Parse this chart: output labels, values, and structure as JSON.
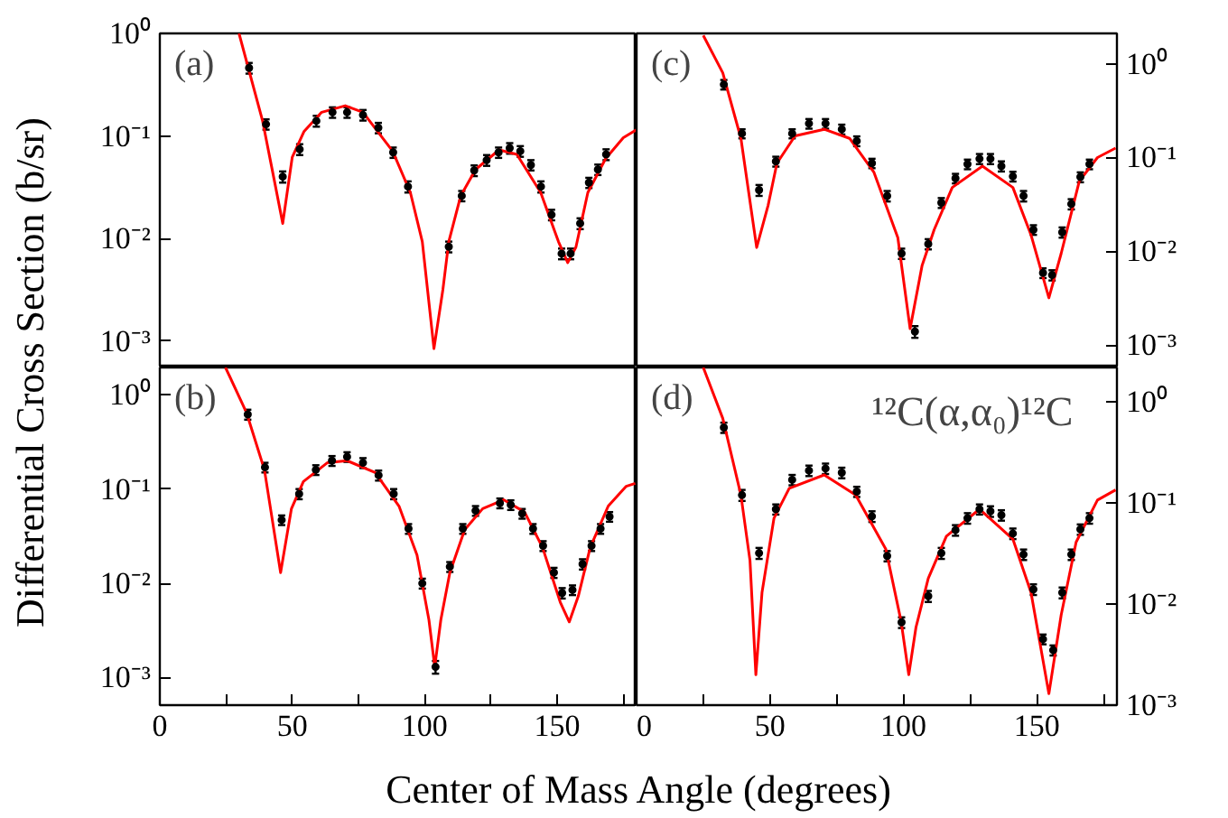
{
  "chart_data": [
    {
      "type": "scatter",
      "annotations": [
        "(a)"
      ],
      "ylabel": "Differential Cross Section (b/sr)",
      "log": true,
      "xlim": [
        0,
        180
      ],
      "ylim": [
        0.00055,
        1
      ],
      "yticks": [
        {
          "value": 0.001,
          "label": "10⁻³"
        },
        {
          "value": 0.01,
          "label": "10⁻²"
        },
        {
          "value": 0.1,
          "label": "10⁻¹"
        },
        {
          "value": 1,
          "label": "10⁰"
        }
      ],
      "tick_labels": "y",
      "series": [
        {
          "type": "scatter",
          "marker": "circle",
          "color": "#000000",
          "x": [
            33.7,
            40.1,
            46.4,
            52.8,
            59.1,
            65.2,
            70.7,
            76.7,
            82.5,
            88.1,
            93.7,
            109.1,
            114.0,
            118.7,
            123.4,
            127.9,
            132.1,
            136.1,
            140.1,
            143.9,
            147.9,
            151.7,
            155.1,
            158.7,
            162.0,
            165.4,
            168.5
          ],
          "values": [
            0.46,
            0.13,
            0.04,
            0.074,
            0.14,
            0.17,
            0.17,
            0.16,
            0.12,
            0.069,
            0.032,
            0.0083,
            0.026,
            0.046,
            0.058,
            0.069,
            0.076,
            0.071,
            0.052,
            0.032,
            0.017,
            0.0071,
            0.0071,
            0.014,
            0.035,
            0.047,
            0.066
          ],
          "errors": [
            0.055,
            0.015,
            0.005,
            0.009,
            0.017,
            0.02,
            0.02,
            0.019,
            0.014,
            0.008,
            0.004,
            0.001,
            0.003,
            0.0055,
            0.007,
            0.008,
            0.009,
            0.0085,
            0.006,
            0.004,
            0.002,
            0.00085,
            0.00085,
            0.0017,
            0.004,
            0.0055,
            0.008
          ]
        },
        {
          "type": "line",
          "color": "#ff0000",
          "x": [
            29.9,
            38.8,
            43.3,
            46.4,
            50.0,
            54.4,
            61.1,
            70.0,
            76.7,
            87.9,
            94.6,
            99.1,
            103.5,
            106.9,
            109.1,
            113.6,
            119.2,
            128.1,
            134.8,
            143.8,
            150.5,
            154.0,
            157.1,
            161.6,
            168.3,
            175.0,
            180.0
          ],
          "values": [
            1,
            0.14,
            0.036,
            0.014,
            0.062,
            0.11,
            0.17,
            0.197,
            0.17,
            0.071,
            0.028,
            0.0093,
            0.00084,
            0.0032,
            0.0093,
            0.026,
            0.047,
            0.073,
            0.066,
            0.028,
            0.0093,
            0.0058,
            0.0082,
            0.028,
            0.06,
            0.096,
            0.115
          ]
        }
      ]
    },
    {
      "type": "scatter",
      "annotations": [
        "(c)"
      ],
      "log": true,
      "xlim": [
        0,
        180
      ],
      "ylim": [
        0.00058,
        2.1
      ],
      "yticks": [
        {
          "value": 0.001,
          "label": "10⁻³"
        },
        {
          "value": 0.01,
          "label": "10⁻²"
        },
        {
          "value": 0.1,
          "label": "10⁻¹"
        },
        {
          "value": 1,
          "label": "10⁰"
        }
      ],
      "tick_labels": "y",
      "series": [
        {
          "type": "scatter",
          "marker": "circle",
          "color": "#000000",
          "x": [
            32.7,
            39.5,
            45.9,
            52.2,
            58.3,
            64.6,
            70.8,
            76.9,
            82.5,
            88.2,
            93.9,
            99.3,
            104.3,
            109.3,
            114.2,
            119.5,
            124.0,
            128.5,
            132.6,
            136.7,
            141.0,
            145.0,
            148.7,
            152.3,
            155.7,
            159.5,
            162.9,
            166.3,
            169.7
          ],
          "values": [
            0.6,
            0.18,
            0.045,
            0.091,
            0.18,
            0.23,
            0.23,
            0.2,
            0.15,
            0.087,
            0.039,
            0.0095,
            0.0014,
            0.012,
            0.033,
            0.06,
            0.085,
            0.097,
            0.097,
            0.081,
            0.063,
            0.039,
            0.017,
            0.0059,
            0.0056,
            0.016,
            0.032,
            0.062,
            0.085
          ],
          "errors": [
            0.07,
            0.02,
            0.006,
            0.011,
            0.02,
            0.027,
            0.027,
            0.024,
            0.018,
            0.01,
            0.005,
            0.0012,
            0.0002,
            0.0015,
            0.004,
            0.007,
            0.01,
            0.012,
            0.012,
            0.01,
            0.0075,
            0.005,
            0.002,
            0.0007,
            0.0007,
            0.002,
            0.004,
            0.0075,
            0.01
          ]
        },
        {
          "type": "line",
          "color": "#ff0000",
          "x": [
            25.0,
            32.3,
            39.1,
            45.0,
            49.3,
            52.6,
            59.4,
            70.3,
            79.8,
            88.9,
            97.9,
            102.5,
            107.0,
            111.5,
            118.3,
            129.6,
            141.0,
            147.8,
            154.5,
            159.1,
            165.9,
            172.7,
            179.5
          ],
          "values": [
            2.0,
            0.8,
            0.16,
            0.011,
            0.031,
            0.087,
            0.17,
            0.2,
            0.16,
            0.07,
            0.014,
            0.0015,
            0.0071,
            0.017,
            0.048,
            0.081,
            0.048,
            0.015,
            0.0032,
            0.0095,
            0.056,
            0.1,
            0.126
          ]
        }
      ]
    },
    {
      "type": "scatter",
      "annotations": [
        "(b)"
      ],
      "xlabel": "Center of Mass Angle (degrees)",
      "log": true,
      "xlim": [
        0,
        180
      ],
      "ylim": [
        0.00051,
        1.95
      ],
      "xticks": [
        0,
        {
          "value": 25,
          "label": null
        },
        50,
        {
          "value": 75,
          "label": null
        },
        100,
        {
          "value": 125,
          "label": null
        },
        150,
        {
          "value": 175,
          "label": null
        }
      ],
      "yticks": [
        {
          "value": 0.001,
          "label": "10⁻³"
        },
        {
          "value": 0.01,
          "label": "10⁻²"
        },
        {
          "value": 0.1,
          "label": "10⁻¹"
        },
        {
          "value": 1,
          "label": "10⁰"
        }
      ],
      "series": [
        {
          "type": "scatter",
          "marker": "circle",
          "color": "#000000",
          "x": [
            33.2,
            39.7,
            46.0,
            52.6,
            58.9,
            65.0,
            70.7,
            76.7,
            82.6,
            88.3,
            93.9,
            99.1,
            104.1,
            109.5,
            114.4,
            119.2,
            128.4,
            132.5,
            136.8,
            140.9,
            144.7,
            148.8,
            151.9,
            155.8,
            159.6,
            163.0,
            166.4,
            169.8
          ],
          "values": [
            0.62,
            0.17,
            0.047,
            0.089,
            0.16,
            0.2,
            0.22,
            0.19,
            0.14,
            0.089,
            0.038,
            0.01,
            0.0013,
            0.015,
            0.038,
            0.059,
            0.071,
            0.068,
            0.055,
            0.038,
            0.025,
            0.013,
            0.0079,
            0.0085,
            0.016,
            0.025,
            0.038,
            0.051
          ],
          "errors": [
            0.075,
            0.02,
            0.0055,
            0.011,
            0.019,
            0.024,
            0.026,
            0.023,
            0.017,
            0.011,
            0.0045,
            0.0012,
            0.0002,
            0.0018,
            0.0045,
            0.007,
            0.0085,
            0.008,
            0.0065,
            0.0045,
            0.003,
            0.0016,
            0.001,
            0.001,
            0.002,
            0.003,
            0.0045,
            0.006
          ]
        },
        {
          "type": "line",
          "color": "#ff0000",
          "x": [
            24.8,
            32.7,
            39.5,
            45.6,
            49.7,
            54.2,
            63.2,
            70.7,
            81.3,
            90.3,
            97.1,
            101.6,
            103.8,
            106.1,
            109.5,
            115.1,
            121.9,
            129.8,
            137.7,
            144.5,
            151.2,
            154.6,
            158.0,
            162.5,
            169.3,
            176.1,
            179.5
          ],
          "values": [
            1.95,
            0.65,
            0.16,
            0.013,
            0.062,
            0.12,
            0.19,
            0.2,
            0.15,
            0.066,
            0.02,
            0.0041,
            0.0013,
            0.0041,
            0.013,
            0.037,
            0.062,
            0.077,
            0.057,
            0.024,
            0.0063,
            0.0039,
            0.0073,
            0.024,
            0.066,
            0.107,
            0.115
          ]
        }
      ]
    },
    {
      "type": "scatter",
      "annotations": [
        "(d)",
        "¹²C(α,α₀)¹²C"
      ],
      "log": true,
      "xlim": [
        0,
        180
      ],
      "ylim": [
        0.001,
        2.2
      ],
      "xticks": [
        0,
        {
          "value": 25,
          "label": null
        },
        50,
        {
          "value": 75,
          "label": null
        },
        100,
        {
          "value": 125,
          "label": null
        },
        150,
        {
          "value": 175,
          "label": null
        }
      ],
      "yticks": [
        {
          "value": 0.001,
          "label": "10⁻³"
        },
        {
          "value": 0.01,
          "label": "10⁻²"
        },
        {
          "value": 0.1,
          "label": "10⁻¹"
        },
        {
          "value": 1,
          "label": "10⁰"
        }
      ],
      "series": [
        {
          "type": "scatter",
          "marker": "circle",
          "color": "#000000",
          "x": [
            32.7,
            39.5,
            45.9,
            52.2,
            58.3,
            64.6,
            70.8,
            76.9,
            82.5,
            88.2,
            93.9,
            99.3,
            109.3,
            114.2,
            119.5,
            124.0,
            128.5,
            132.6,
            136.7,
            141.0,
            145.0,
            148.7,
            152.3,
            156.1,
            159.5,
            162.9,
            166.3,
            169.7
          ],
          "values": [
            0.56,
            0.12,
            0.032,
            0.087,
            0.17,
            0.21,
            0.22,
            0.2,
            0.13,
            0.074,
            0.03,
            0.0066,
            0.012,
            0.032,
            0.054,
            0.071,
            0.087,
            0.083,
            0.076,
            0.05,
            0.031,
            0.014,
            0.0045,
            0.0035,
            0.013,
            0.031,
            0.055,
            0.071
          ],
          "errors": [
            0.065,
            0.015,
            0.004,
            0.01,
            0.02,
            0.025,
            0.026,
            0.024,
            0.015,
            0.009,
            0.0035,
            0.0008,
            0.0015,
            0.004,
            0.0065,
            0.0085,
            0.01,
            0.01,
            0.009,
            0.006,
            0.0037,
            0.0017,
            0.0005,
            0.0004,
            0.0016,
            0.0037,
            0.0065,
            0.0085
          ]
        },
        {
          "type": "line",
          "color": "#ff0000",
          "x": [
            25.0,
            32.3,
            39.1,
            42.5,
            44.7,
            47.0,
            51.5,
            57.2,
            70.3,
            82.1,
            93.4,
            99.1,
            102.0,
            104.7,
            109.3,
            116.1,
            128.5,
            141.0,
            147.8,
            154.5,
            159.1,
            164.7,
            172.7,
            179.5
          ],
          "values": [
            2.2,
            0.69,
            0.12,
            0.027,
            0.002,
            0.013,
            0.071,
            0.14,
            0.19,
            0.12,
            0.035,
            0.0068,
            0.002,
            0.0059,
            0.018,
            0.047,
            0.087,
            0.044,
            0.013,
            0.0013,
            0.0078,
            0.041,
            0.107,
            0.135
          ]
        }
      ]
    }
  ]
}
